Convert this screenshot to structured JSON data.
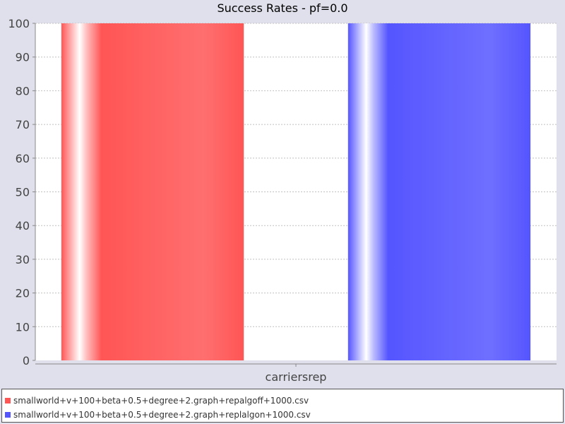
{
  "chart_data": {
    "type": "bar",
    "title": "Success Rates - pf=0.0",
    "categories": [
      "carriersrep"
    ],
    "series": [
      {
        "name": "smallworld+v+100+beta+0.5+degree+2.graph+repalgoff+1000.csv",
        "values": [
          100
        ],
        "color": "#ff5555"
      },
      {
        "name": "smallworld+v+100+beta+0.5+degree+2.graph+replalgon+1000.csv",
        "values": [
          100
        ],
        "color": "#5555ff"
      }
    ],
    "xlabel": "",
    "ylabel": "",
    "ylim": [
      0,
      100
    ],
    "yticks": [
      0,
      10,
      20,
      30,
      40,
      50,
      60,
      70,
      80,
      90,
      100
    ],
    "grid": true,
    "legend_position": "bottom"
  }
}
